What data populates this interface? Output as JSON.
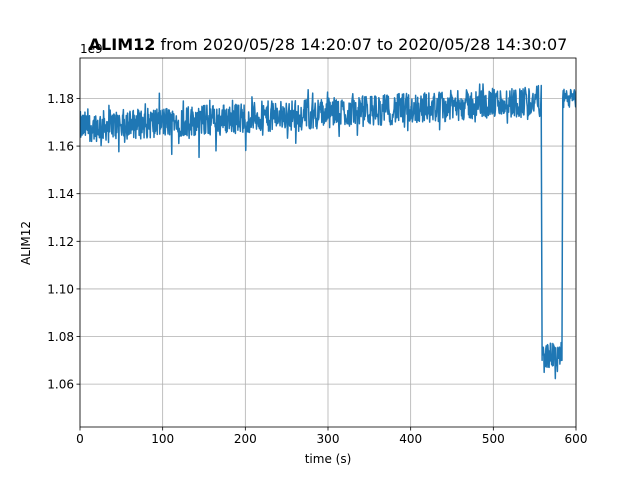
{
  "title": {
    "bold": "ALIM12",
    "rest": " from 2020/05/28 14:20:07 to 2020/05/28 14:30:07"
  },
  "offset_text": "1e9",
  "chart_data": {
    "type": "line",
    "xlabel": "time (s)",
    "ylabel": "ALIM12",
    "xlim": [
      0,
      600
    ],
    "ylim": [
      1.042,
      1.197
    ],
    "y_scale_factor": "1e9",
    "grid": true,
    "color": "#1f77b4",
    "x_ticks": [
      0,
      100,
      200,
      300,
      400,
      500,
      600
    ],
    "x_tick_labels": [
      "0",
      "100",
      "200",
      "300",
      "400",
      "500",
      "600"
    ],
    "y_ticks": [
      1.06,
      1.08,
      1.1,
      1.12,
      1.14,
      1.16,
      1.18
    ],
    "y_tick_labels": [
      "1.06",
      "1.08",
      "1.10",
      "1.12",
      "1.14",
      "1.16",
      "1.18"
    ],
    "series": [
      {
        "segments": [
          {
            "x_start": 0,
            "x_end": 558,
            "mean_start": 1.168,
            "mean_end": 1.179,
            "noise": 0.0065,
            "min": 1.149,
            "max": 1.187
          },
          {
            "x_start": 558,
            "x_end": 559,
            "mean_start": 1.17,
            "mean_end": 1.07,
            "noise": 0.0,
            "min": 1.07,
            "max": 1.17
          },
          {
            "x_start": 559,
            "x_end": 583,
            "mean_start": 1.072,
            "mean_end": 1.072,
            "noise": 0.0055,
            "min": 1.049,
            "max": 1.079
          },
          {
            "x_start": 583,
            "x_end": 584,
            "mean_start": 1.07,
            "mean_end": 1.18,
            "noise": 0.0,
            "min": 1.07,
            "max": 1.18
          },
          {
            "x_start": 584,
            "x_end": 600,
            "mean_start": 1.18,
            "mean_end": 1.18,
            "noise": 0.004,
            "min": 1.17,
            "max": 1.19
          }
        ]
      }
    ]
  }
}
